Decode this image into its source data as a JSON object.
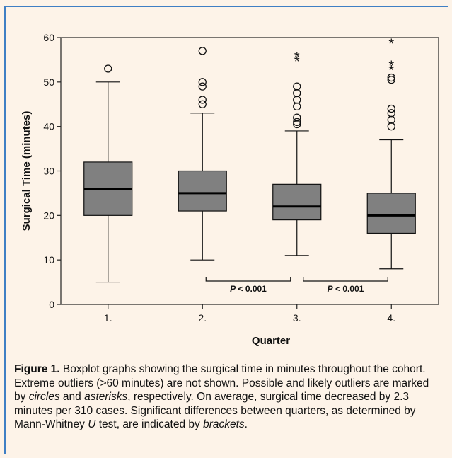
{
  "chart_data": {
    "type": "boxplot",
    "categories": [
      "1.",
      "2.",
      "3.",
      "4."
    ],
    "xlabel": "Quarter",
    "ylabel": "Surgical Time (minutes)",
    "ylim": [
      0,
      60
    ],
    "yticks": [
      0,
      10,
      20,
      30,
      40,
      50,
      60
    ],
    "box_color": "#808080",
    "boxes": [
      {
        "category": "1.",
        "q1": 20,
        "median": 26,
        "q3": 32,
        "whisker_low": 5,
        "whisker_high": 50,
        "outliers_circle": [
          53
        ],
        "outliers_asterisk": []
      },
      {
        "category": "2.",
        "q1": 21,
        "median": 25,
        "q3": 30,
        "whisker_low": 10,
        "whisker_high": 43,
        "outliers_circle": [
          45,
          46,
          49,
          50,
          57
        ],
        "outliers_asterisk": []
      },
      {
        "category": "3.",
        "q1": 19,
        "median": 22,
        "q3": 27,
        "whisker_low": 11,
        "whisker_high": 39,
        "outliers_circle": [
          40.5,
          41,
          42,
          44.5,
          46,
          47.5,
          49
        ],
        "outliers_asterisk": [
          55,
          56
        ]
      },
      {
        "category": "4.",
        "q1": 16,
        "median": 20,
        "q3": 25,
        "whisker_low": 8,
        "whisker_high": 37,
        "outliers_circle": [
          40,
          41.5,
          43,
          44,
          50.5,
          51
        ],
        "outliers_asterisk": [
          53,
          54,
          59
        ]
      }
    ],
    "brackets": [
      {
        "from": "2.",
        "to": "3.",
        "label_italic": "P",
        "label_rest": " < 0.001"
      },
      {
        "from": "3.",
        "to": "4.",
        "label_italic": "P",
        "label_rest": " < 0.001"
      }
    ]
  },
  "caption": {
    "figure_label": "Figure 1.",
    "part1": "  Boxplot graphs showing the surgical time in minutes throughout the cohort. Extreme outliers (>60 minutes) are not shown. Possible and likely outliers are marked by ",
    "circles": "circles",
    "part2": " and ",
    "asterisks": "asterisks",
    "part3": ", respectively. On average, surgical time decreased by 2.3 minutes per 310 cases. Significant differences between quarters, as determined by Mann-Whitney ",
    "u": "U",
    "part4": " test, are indicated by ",
    "brackets": "brackets",
    "part5": "."
  }
}
